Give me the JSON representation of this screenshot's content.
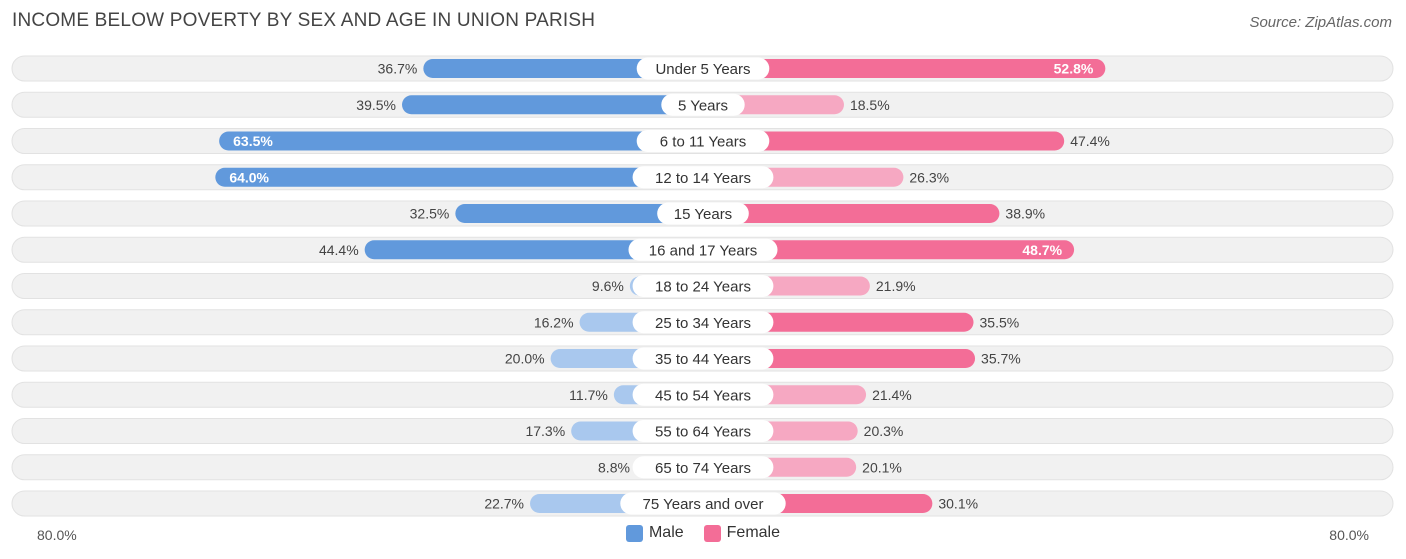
{
  "title": "INCOME BELOW POVERTY BY SEX AND AGE IN UNION PARISH",
  "source": "Source: ZipAtlas.com",
  "colors": {
    "male_strong": "#6199dc",
    "male_light": "#a9c8ee",
    "female_strong": "#f36d97",
    "female_light": "#f6a8c2",
    "row_bg": "#f1f1f1"
  },
  "chart_data": {
    "type": "bar",
    "orientation": "horizontal-diverging",
    "categories": [
      "Under 5 Years",
      "5 Years",
      "6 to 11 Years",
      "12 to 14 Years",
      "15 Years",
      "16 and 17 Years",
      "18 to 24 Years",
      "25 to 34 Years",
      "35 to 44 Years",
      "45 to 54 Years",
      "55 to 64 Years",
      "65 to 74 Years",
      "75 Years and over"
    ],
    "series": [
      {
        "name": "Male",
        "values": [
          36.7,
          39.5,
          63.5,
          64.0,
          32.5,
          44.4,
          9.6,
          16.2,
          20.0,
          11.7,
          17.3,
          8.8,
          22.7
        ],
        "labels": [
          "36.7%",
          "39.5%",
          "63.5%",
          "64.0%",
          "32.5%",
          "44.4%",
          "9.6%",
          "16.2%",
          "20.0%",
          "11.7%",
          "17.3%",
          "8.8%",
          "22.7%"
        ]
      },
      {
        "name": "Female",
        "values": [
          52.8,
          18.5,
          47.4,
          26.3,
          38.9,
          48.7,
          21.9,
          35.5,
          35.7,
          21.4,
          20.3,
          20.1,
          30.1
        ],
        "labels": [
          "52.8%",
          "18.5%",
          "47.4%",
          "26.3%",
          "38.9%",
          "48.7%",
          "21.9%",
          "35.5%",
          "35.7%",
          "21.4%",
          "20.3%",
          "20.1%",
          "30.1%"
        ]
      }
    ],
    "xlim": [
      0,
      80
    ],
    "axis_min_label": "80.0%",
    "axis_max_label": "80.0%",
    "legend_position": "bottom-center"
  }
}
